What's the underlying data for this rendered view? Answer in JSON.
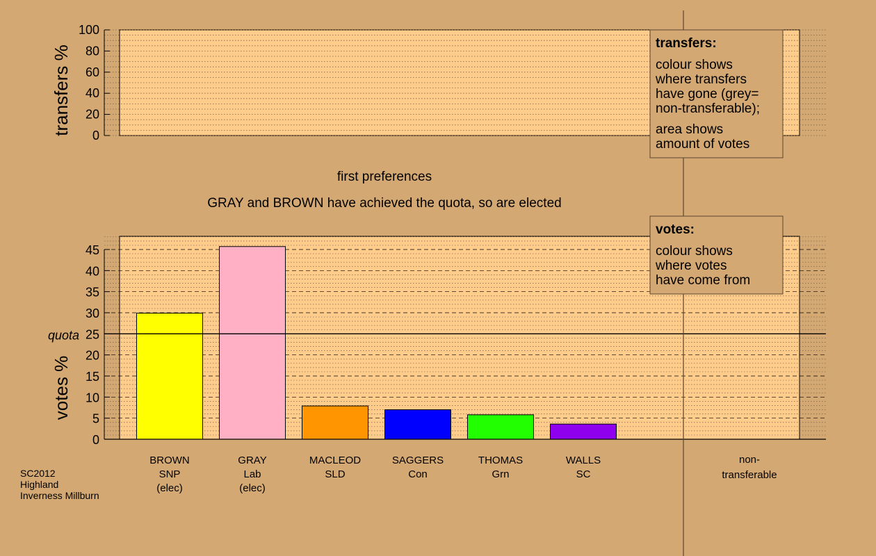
{
  "chart_data": [
    {
      "type": "bar",
      "panel": "transfers",
      "ylabel": "transfers %",
      "ylim": [
        0,
        100
      ],
      "yticks": [
        "0",
        "20",
        "40",
        "60",
        "80",
        "100"
      ],
      "series": [],
      "legend_box": {
        "title": "transfers:",
        "lines1": [
          "colour shows",
          "where transfers",
          "have gone (grey=",
          "non-transferable);"
        ],
        "lines2": [
          "area shows",
          "amount of votes"
        ]
      }
    },
    {
      "type": "bar",
      "panel": "votes",
      "title": "first preferences",
      "subtitle": "GRAY and BROWN have achieved the quota, so are elected",
      "ylabel": "votes %",
      "ylim": [
        0,
        48
      ],
      "yticks": [
        "0",
        "5",
        "10",
        "15",
        "20",
        "25",
        "30",
        "35",
        "40",
        "45"
      ],
      "quota": 25,
      "quota_label": "quota",
      "categories": [
        {
          "lines": [
            "BROWN",
            "SNP",
            "(elec)"
          ],
          "value": 29.9,
          "color": "#ffff00"
        },
        {
          "lines": [
            "GRAY",
            "Lab",
            "(elec)"
          ],
          "value": 45.7,
          "color": "#ffb0c4"
        },
        {
          "lines": [
            "MACLEOD",
            "SLD"
          ],
          "value": 7.9,
          "color": "#ff9500"
        },
        {
          "lines": [
            "SAGGERS",
            "Con"
          ],
          "value": 7.0,
          "color": "#0000ff"
        },
        {
          "lines": [
            "THOMAS",
            "Grn"
          ],
          "value": 5.8,
          "color": "#22ff00"
        },
        {
          "lines": [
            "WALLS",
            "SC"
          ],
          "value": 3.6,
          "color": "#8f00ee"
        }
      ],
      "nontransferable": {
        "lines": [
          "non-",
          "transferable"
        ],
        "value": 0
      },
      "legend_box": {
        "title": "votes:",
        "lines1": [
          "colour shows",
          "where votes",
          "have come from"
        ]
      }
    }
  ],
  "footer": [
    "SC2012",
    "Highland",
    "Inverness Millburn"
  ],
  "colors": {
    "background": "#d4a872",
    "plot_background": "#ffcc8c"
  }
}
